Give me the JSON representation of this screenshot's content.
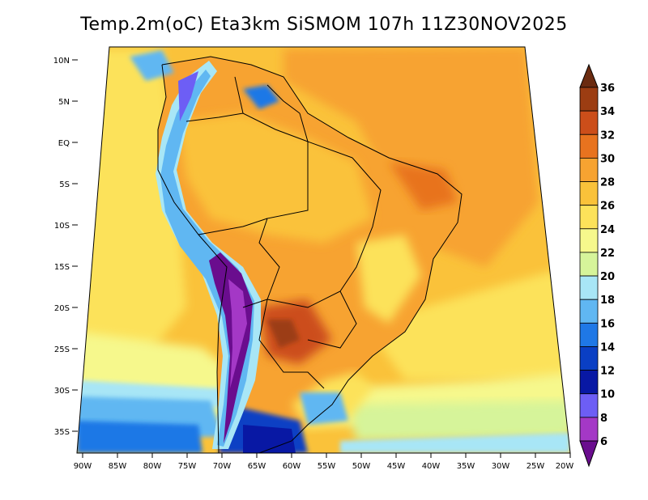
{
  "title": "Temp.2m(oC) Eta3km SiSMOM 107h 11Z30NOV2025",
  "lat_labels": [
    "10N",
    "5N",
    "EQ",
    "5S",
    "10S",
    "15S",
    "20S",
    "25S",
    "30S",
    "35S"
  ],
  "lon_labels": [
    "90W",
    "85W",
    "80W",
    "75W",
    "70W",
    "65W",
    "60W",
    "55W",
    "50W",
    "45W",
    "40W",
    "35W",
    "30W",
    "25W",
    "20W"
  ],
  "colorbar": {
    "labels": [
      "36",
      "34",
      "32",
      "30",
      "28",
      "26",
      "24",
      "22",
      "20",
      "18",
      "16",
      "14",
      "12",
      "10",
      "8",
      "6"
    ],
    "colors": [
      "#6b2b10",
      "#9c3d12",
      "#cc4e1a",
      "#e8731f",
      "#f7a331",
      "#fac23a",
      "#fce25a",
      "#f6f88c",
      "#d6f49a",
      "#a8e6f6",
      "#60b7f2",
      "#1f78e6",
      "#0a3fc4",
      "#0818a4",
      "#6d5ef5",
      "#a438c6",
      "#6a0d8e"
    ]
  }
}
